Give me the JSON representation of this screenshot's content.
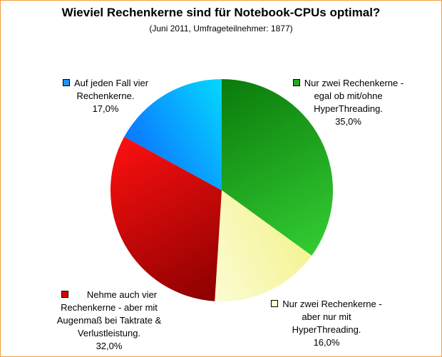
{
  "chart_data": {
    "type": "pie",
    "title": "Wieviel Rechenkerne sind für Notebook-CPUs optimal?",
    "subtitle": "(Juni 2011, Umfrageteilnehmer: 1877)",
    "slices": [
      {
        "label_lines": [
          "Nur zwei Rechenkerne -",
          "egal ob mit/ohne",
          "HyperThreading."
        ],
        "value": 35.0,
        "value_label": "35,0%",
        "color_light": "#33cc33",
        "color_dark": "#0a7a0a",
        "swatch": "#22aa22"
      },
      {
        "label_lines": [
          "Nur zwei Rechenkerne -",
          "aber nur mit",
          "HyperThreading."
        ],
        "value": 16.0,
        "value_label": "16,0%",
        "color_light": "#ffffee",
        "color_dark": "#f0f07a",
        "swatch": "#ffffcc"
      },
      {
        "label_lines": [
          "Nehme auch vier",
          "Rechenkerne - aber mit",
          "Augenmaß bei Taktrate &",
          "Verlustleistung."
        ],
        "value": 32.0,
        "value_label": "32,0%",
        "color_light": "#ff1010",
        "color_dark": "#880000",
        "swatch": "#dd0000"
      },
      {
        "label_lines": [
          "Auf jeden Fall vier",
          "Rechenkerne."
        ],
        "value": 17.0,
        "value_label": "17,0%",
        "color_light": "#00ffff",
        "color_dark": "#1050ff",
        "swatch": "#1e90ff"
      }
    ],
    "legend": "labels-around-pie"
  }
}
